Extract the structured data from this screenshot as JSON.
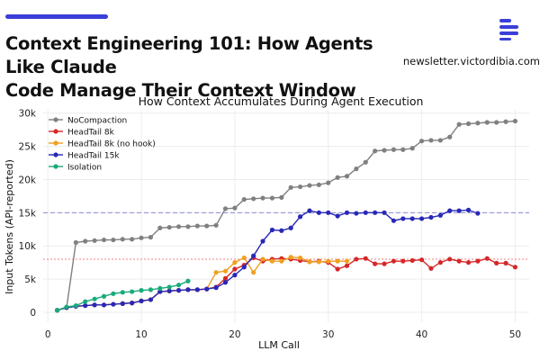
{
  "header": {
    "headline_line1": "Context Engineering 101: How Agents Like Claude",
    "headline_line2": "Code Manage Their Context Window",
    "site": "newsletter.victordibia.com",
    "accent_color": "#3b3fd8",
    "logo_icon": "newsletter-logo-icon"
  },
  "chart_data": {
    "type": "line",
    "title": "How Context Accumulates During Agent Execution",
    "xlabel": "LLM Call",
    "ylabel": "Input Tokens (API-reported)",
    "xlim": [
      -0.5,
      51.5
    ],
    "ylim": [
      -1500,
      30500
    ],
    "xticks": [
      0,
      10,
      20,
      30,
      40,
      50
    ],
    "xtick_labels": [
      "0",
      "10",
      "20",
      "30",
      "40",
      "50"
    ],
    "yticks": [
      0,
      5000,
      10000,
      15000,
      20000,
      25000,
      30000
    ],
    "ytick_labels": [
      "0",
      "5k",
      "10k",
      "15k",
      "20k",
      "25k",
      "30k"
    ],
    "grid": true,
    "legend_position": "top-left",
    "reference_lines": [
      {
        "y": 15000,
        "color": "#8a8ad6",
        "style": "dashed"
      },
      {
        "y": 8000,
        "color": "#f08080",
        "style": "dotted"
      }
    ],
    "series": [
      {
        "name": "NoCompaction",
        "color": "#808080",
        "x": [
          1,
          2,
          3,
          4,
          5,
          6,
          7,
          8,
          9,
          10,
          11,
          12,
          13,
          14,
          15,
          16,
          17,
          18,
          19,
          20,
          21,
          22,
          23,
          24,
          25,
          26,
          27,
          28,
          29,
          30,
          31,
          32,
          33,
          34,
          35,
          36,
          37,
          38,
          39,
          40,
          41,
          42,
          43,
          44,
          45,
          46,
          47,
          48,
          49,
          50
        ],
        "y": [
          300,
          700,
          10500,
          10700,
          10800,
          10900,
          10900,
          11000,
          11000,
          11200,
          11300,
          12700,
          12800,
          12900,
          12900,
          13000,
          13000,
          13100,
          15600,
          15700,
          17000,
          17100,
          17200,
          17200,
          17300,
          18800,
          18900,
          19100,
          19200,
          19500,
          20300,
          20500,
          21600,
          22600,
          24300,
          24400,
          24500,
          24500,
          24700,
          25800,
          25900,
          25900,
          26400,
          28300,
          28400,
          28500,
          28600,
          28600,
          28700,
          28800
        ]
      },
      {
        "name": "HeadTail 8k",
        "color": "#d62728",
        "x": [
          1,
          2,
          3,
          4,
          5,
          6,
          7,
          8,
          9,
          10,
          11,
          12,
          13,
          14,
          15,
          16,
          17,
          18,
          19,
          20,
          21,
          22,
          23,
          24,
          25,
          26,
          27,
          28,
          29,
          30,
          31,
          32,
          33,
          34,
          35,
          36,
          37,
          38,
          39,
          40,
          41,
          42,
          43,
          44,
          45,
          46,
          47,
          48,
          49,
          50
        ],
        "y": [
          300,
          700,
          900,
          1000,
          1100,
          1100,
          1200,
          1300,
          1400,
          1700,
          1900,
          3100,
          3200,
          3300,
          3400,
          3400,
          3500,
          3800,
          5100,
          6500,
          7100,
          8200,
          7700,
          8000,
          8100,
          8000,
          7800,
          7600,
          7700,
          7500,
          6500,
          7000,
          8000,
          8100,
          7300,
          7300,
          7700,
          7700,
          7800,
          7900,
          6600,
          7500,
          8000,
          7700,
          7500,
          7700,
          8100,
          7400,
          7400,
          6800
        ]
      },
      {
        "name": "HeadTail 8k (no hook)",
        "color": "#f0a020",
        "x": [
          1,
          2,
          3,
          4,
          5,
          6,
          7,
          8,
          9,
          10,
          11,
          12,
          13,
          14,
          15,
          16,
          17,
          18,
          19,
          20,
          21,
          22,
          23,
          24,
          25,
          26,
          27,
          28,
          29,
          30,
          31,
          32
        ],
        "y": [
          300,
          700,
          900,
          1000,
          1100,
          1100,
          1200,
          1300,
          1400,
          1700,
          1900,
          3100,
          3200,
          3300,
          3400,
          3400,
          3500,
          6000,
          6200,
          7500,
          8200,
          6000,
          8000,
          7700,
          7700,
          8300,
          8200,
          7600,
          7600,
          7700,
          7700,
          7700
        ]
      },
      {
        "name": "HeadTail 15k",
        "color": "#2828b8",
        "x": [
          1,
          2,
          3,
          4,
          5,
          6,
          7,
          8,
          9,
          10,
          11,
          12,
          13,
          14,
          15,
          16,
          17,
          18,
          19,
          20,
          21,
          22,
          23,
          24,
          25,
          26,
          27,
          28,
          29,
          30,
          31,
          32,
          33,
          34,
          35,
          36,
          37,
          38,
          39,
          40,
          41,
          42,
          43,
          44,
          45,
          46
        ],
        "y": [
          300,
          700,
          900,
          1000,
          1100,
          1100,
          1200,
          1300,
          1400,
          1700,
          1900,
          3100,
          3200,
          3300,
          3400,
          3400,
          3500,
          3700,
          4500,
          5600,
          6800,
          8500,
          10700,
          12400,
          12300,
          12700,
          14400,
          15300,
          15000,
          15000,
          14500,
          15000,
          14900,
          15000,
          15000,
          15000,
          13800,
          14100,
          14100,
          14100,
          14300,
          14600,
          15300,
          15300,
          15400,
          14900
        ]
      },
      {
        "name": "Isolation",
        "color": "#1aaa7a",
        "x": [
          1,
          2,
          3,
          4,
          5,
          6,
          7,
          8,
          9,
          10,
          11,
          12,
          13,
          14,
          15
        ],
        "y": [
          300,
          800,
          1000,
          1600,
          2000,
          2400,
          2800,
          3000,
          3100,
          3300,
          3400,
          3600,
          3800,
          4100,
          4700
        ]
      }
    ]
  }
}
